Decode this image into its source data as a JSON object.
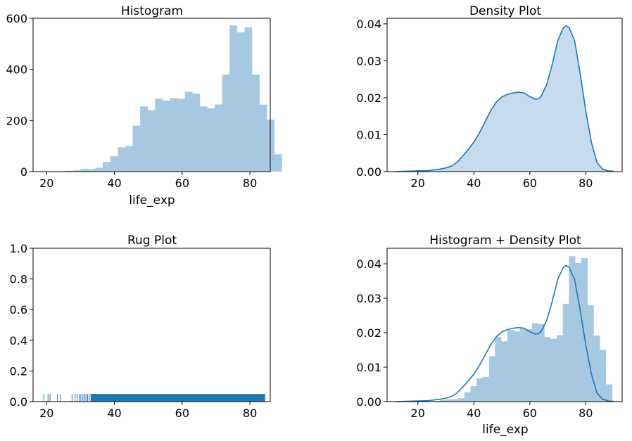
{
  "colors": {
    "bar": "#a6c8e1",
    "line": "#1f77b4",
    "fill": "#c6dbee",
    "rug": "#1f77b4"
  },
  "chart_data": [
    {
      "type": "bar",
      "title": "Histogram",
      "xlabel": "life_exp",
      "ylabel": "",
      "xlim": [
        16,
        86
      ],
      "ylim": [
        0,
        600
      ],
      "xticks": [
        20,
        40,
        60,
        80
      ],
      "yticks": [
        0,
        200,
        400,
        600
      ],
      "bin_start": 19,
      "bin_width": 2.2,
      "values": [
        1,
        1,
        1,
        3,
        5,
        10,
        10,
        15,
        38,
        60,
        95,
        100,
        180,
        255,
        240,
        285,
        278,
        288,
        285,
        312,
        305,
        255,
        248,
        263,
        380,
        572,
        545,
        565,
        380,
        262,
        203,
        68
      ]
    },
    {
      "type": "area",
      "title": "Density Plot",
      "xlabel": "",
      "ylabel": "",
      "xlim": [
        9,
        93
      ],
      "ylim": [
        0,
        0.0415
      ],
      "xticks": [
        20,
        40,
        60,
        80
      ],
      "yticks": [
        0.0,
        0.01,
        0.02,
        0.03,
        0.04
      ],
      "x": [
        12,
        16,
        20,
        24,
        28,
        30,
        32,
        34,
        36,
        38,
        40,
        42,
        44,
        46,
        48,
        50,
        52,
        54,
        56,
        58,
        60,
        62,
        63,
        64,
        66,
        68,
        70,
        72,
        73,
        74,
        76,
        78,
        80,
        82,
        84,
        86,
        88,
        90
      ],
      "y": [
        0.0,
        0.0001,
        0.0002,
        0.0003,
        0.0007,
        0.001,
        0.0015,
        0.0025,
        0.0042,
        0.006,
        0.008,
        0.0105,
        0.0135,
        0.0165,
        0.0188,
        0.0202,
        0.0209,
        0.0213,
        0.0215,
        0.0213,
        0.0203,
        0.0196,
        0.0197,
        0.0203,
        0.0235,
        0.029,
        0.0355,
        0.039,
        0.0395,
        0.039,
        0.0355,
        0.0265,
        0.0165,
        0.008,
        0.0025,
        0.0007,
        0.0002,
        0.0001
      ]
    },
    {
      "type": "scatter",
      "title": "Rug Plot",
      "xlabel": "",
      "ylabel": "",
      "xlim": [
        16,
        86
      ],
      "ylim": [
        0,
        1.0
      ],
      "xticks": [
        20,
        40,
        60,
        80
      ],
      "yticks": [
        0.0,
        0.2,
        0.4,
        0.6,
        0.8,
        1.0
      ],
      "rug_height": 0.05,
      "rug_x": [
        19.2,
        20.4,
        21.0,
        23.2,
        24.1,
        27.5,
        28.4,
        29.0,
        29.6,
        30.1,
        30.7,
        31.2,
        31.6,
        32.1,
        32.6
      ],
      "rug_dense_range": [
        33,
        84.5
      ]
    },
    {
      "type": "bar",
      "title": "Histogram + Density Plot",
      "xlabel": "life_exp",
      "ylabel": "",
      "xlim": [
        9,
        93
      ],
      "ylim": [
        0,
        0.0445
      ],
      "xticks": [
        20,
        40,
        60,
        80
      ],
      "yticks": [
        0.0,
        0.01,
        0.02,
        0.03,
        0.04
      ],
      "bin_start": 19,
      "bin_width": 2.2,
      "values": [
        0.0001,
        0.0001,
        0.0001,
        0.0002,
        0.0004,
        0.0007,
        0.0007,
        0.001,
        0.0027,
        0.0045,
        0.0068,
        0.0072,
        0.0132,
        0.0188,
        0.0175,
        0.0208,
        0.0204,
        0.0212,
        0.021,
        0.0228,
        0.0225,
        0.0187,
        0.0182,
        0.0193,
        0.0284,
        0.0422,
        0.0402,
        0.0416,
        0.028,
        0.0192,
        0.015,
        0.005
      ],
      "density_x": [
        12,
        16,
        20,
        24,
        28,
        30,
        32,
        34,
        36,
        38,
        40,
        42,
        44,
        46,
        48,
        50,
        52,
        54,
        56,
        58,
        60,
        62,
        63,
        64,
        66,
        68,
        70,
        72,
        73,
        74,
        76,
        78,
        80,
        82,
        84,
        86,
        88,
        90
      ],
      "density_y": [
        0.0,
        0.0001,
        0.0002,
        0.0003,
        0.0007,
        0.001,
        0.0015,
        0.0025,
        0.0042,
        0.006,
        0.008,
        0.0105,
        0.0135,
        0.0165,
        0.0188,
        0.0202,
        0.0209,
        0.0213,
        0.0215,
        0.0213,
        0.0203,
        0.0196,
        0.0197,
        0.0203,
        0.0235,
        0.029,
        0.0355,
        0.039,
        0.0395,
        0.039,
        0.0355,
        0.0265,
        0.0165,
        0.008,
        0.0025,
        0.0007,
        0.0002,
        0.0001
      ]
    }
  ]
}
